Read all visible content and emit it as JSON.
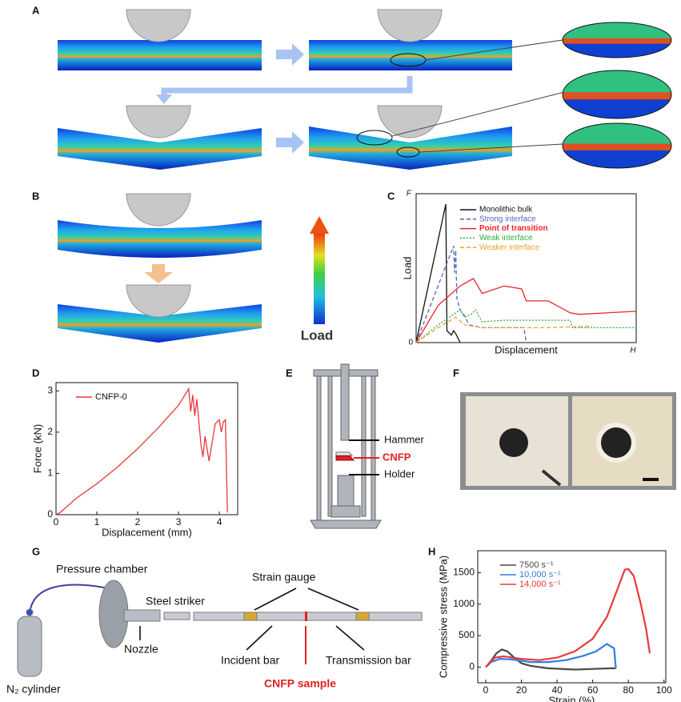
{
  "panel_labels": [
    "A",
    "B",
    "C",
    "D",
    "E",
    "F",
    "G",
    "H"
  ],
  "B": {
    "colorbar_label": "Load"
  },
  "E": {
    "labels": [
      "Hammer",
      "CNFP",
      "Holder"
    ]
  },
  "G": {
    "labels": [
      "Pressure chamber",
      "Steel striker",
      "Strain gauge",
      "Nozzle",
      "Incident bar",
      "Transmission bar",
      "CNFP sample",
      "N₂ cylinder"
    ]
  },
  "chart_data": [
    {
      "type": "line",
      "xlabel": "Displacement",
      "ylabel": "Load",
      "y_end_label": "F",
      "x_end_label": "H",
      "origin_label": "0",
      "xlim": [
        0,
        100
      ],
      "ylim": [
        0,
        100
      ],
      "legend": "upper right",
      "frame": true,
      "series": [
        {
          "name": "Monolithic bulk",
          "color": "#111111",
          "dash": "solid",
          "x": [
            0,
            13.5,
            14,
            16,
            17,
            18,
            20
          ],
          "values": [
            0,
            93,
            8,
            5,
            8,
            6,
            0
          ]
        },
        {
          "name": "Strong interface",
          "color": "#5566bb",
          "dash": "dashed",
          "x": [
            0,
            17,
            17.5,
            18,
            18.5,
            20,
            22,
            24,
            30,
            45,
            49,
            50
          ],
          "values": [
            0,
            65,
            47,
            62,
            30,
            22,
            18,
            12,
            10,
            10,
            10,
            0
          ]
        },
        {
          "name": "Point of transition",
          "color": "#e8262a",
          "dash": "solid",
          "bold": true,
          "x": [
            0,
            10,
            20,
            26,
            30,
            40,
            48,
            50,
            60,
            70,
            74,
            100
          ],
          "values": [
            0,
            25,
            38,
            43,
            33,
            38,
            36,
            28,
            28,
            20,
            19,
            21
          ]
        },
        {
          "name": "Weak interface",
          "color": "#2fae3a",
          "dash": "dotted",
          "x": [
            0,
            10,
            20,
            22,
            25,
            27,
            30,
            40,
            60,
            70,
            71,
            100
          ],
          "values": [
            0,
            12,
            22,
            17,
            19,
            22,
            14,
            15,
            15,
            15,
            10,
            10
          ]
        },
        {
          "name": "Weaker interface",
          "color": "#f0a030",
          "dash": "dashed",
          "x": [
            0,
            10,
            18,
            22,
            30,
            60,
            80
          ],
          "values": [
            0,
            10,
            17,
            12,
            10,
            10,
            11
          ]
        }
      ]
    },
    {
      "type": "line",
      "xlabel": "Displacement (mm)",
      "ylabel": "Force (kN)",
      "xlim": [
        0,
        4.45
      ],
      "ylim": [
        0,
        3.2
      ],
      "xticks": [
        0,
        1,
        2,
        3,
        4
      ],
      "yticks": [
        0,
        1,
        2,
        3
      ],
      "legend": "upper left",
      "frame": true,
      "series": [
        {
          "name": "CNFP-0",
          "color": "#e8393b",
          "dash": "solid",
          "x": [
            0,
            0.1,
            0.5,
            1,
            1.5,
            2,
            2.5,
            3,
            3.25,
            3.3,
            3.35,
            3.4,
            3.45,
            3.55,
            3.6,
            3.65,
            3.75,
            3.8,
            3.85,
            3.9,
            4.0,
            4.05,
            4.1,
            4.15,
            4.2
          ],
          "values": [
            0,
            0.05,
            0.4,
            0.75,
            1.15,
            1.6,
            2.1,
            2.65,
            3.05,
            2.5,
            2.9,
            2.4,
            2.8,
            1.7,
            1.4,
            1.9,
            1.3,
            1.6,
            1.9,
            2.2,
            2.3,
            2.0,
            2.25,
            2.3,
            0.05
          ]
        }
      ]
    },
    {
      "type": "line",
      "xlabel": "Strain (%)",
      "ylabel": "Compressive stress (MPa)",
      "xlim": [
        -4.5,
        101
      ],
      "ylim": [
        -250,
        1850
      ],
      "xticks": [
        0,
        20,
        40,
        60,
        80,
        100
      ],
      "yticks": [
        0,
        500,
        1000,
        1500
      ],
      "legend": "upper left",
      "frame": true,
      "series": [
        {
          "name": "7500 s⁻¹",
          "color": "#4a4a4a",
          "dash": "solid",
          "x": [
            0,
            3,
            6,
            9,
            12,
            16,
            20,
            25,
            35,
            50,
            60,
            70,
            73
          ],
          "values": [
            0,
            100,
            220,
            280,
            250,
            150,
            60,
            20,
            -20,
            -40,
            -30,
            -20,
            -20
          ]
        },
        {
          "name": "10,000 s⁻¹",
          "color": "#2f7fe0",
          "dash": "solid",
          "x": [
            0,
            3,
            8,
            15,
            25,
            35,
            45,
            55,
            62,
            68,
            70,
            72,
            73
          ],
          "values": [
            0,
            80,
            130,
            120,
            80,
            80,
            110,
            180,
            250,
            370,
            330,
            300,
            -20
          ]
        },
        {
          "name": "14,000 s⁻¹",
          "color": "#e8393b",
          "dash": "solid",
          "x": [
            0,
            5,
            10,
            20,
            30,
            40,
            50,
            60,
            68,
            74,
            78,
            80,
            83,
            87,
            90,
            92
          ],
          "values": [
            0,
            150,
            170,
            130,
            110,
            150,
            250,
            450,
            800,
            1250,
            1550,
            1560,
            1450,
            1000,
            600,
            220
          ]
        }
      ]
    }
  ]
}
